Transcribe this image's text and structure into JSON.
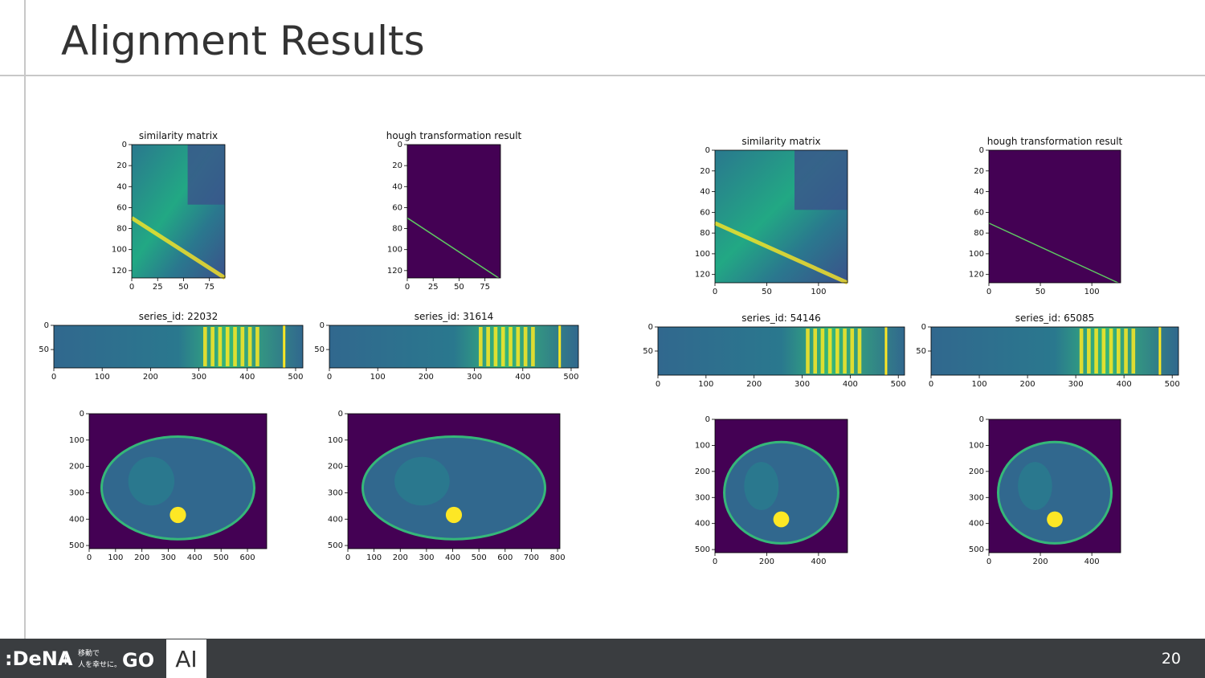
{
  "header": {
    "title": "Alignment Results"
  },
  "panels": [
    {
      "title": "similarity matrix",
      "xlim": [
        0,
        90
      ],
      "ylim": [
        127,
        0
      ],
      "xticks": [
        0,
        25,
        50,
        75
      ],
      "yticks": [
        0,
        20,
        40,
        60,
        80,
        100,
        120
      ]
    },
    {
      "title": "hough transformation result",
      "xlim": [
        0,
        90
      ],
      "ylim": [
        127,
        0
      ],
      "xticks": [
        0,
        25,
        50,
        75
      ],
      "yticks": [
        0,
        20,
        40,
        60,
        80,
        100,
        120
      ]
    },
    {
      "title": "series_id: 22032",
      "xlim": [
        0,
        515
      ],
      "ylim": [
        88,
        0
      ],
      "xticks": [
        0,
        100,
        200,
        300,
        400,
        500
      ],
      "yticks": [
        0,
        50
      ]
    },
    {
      "title": "series_id: 31614",
      "xlim": [
        0,
        515
      ],
      "ylim": [
        88,
        0
      ],
      "xticks": [
        0,
        100,
        200,
        300,
        400,
        500
      ],
      "yticks": [
        0,
        50
      ]
    },
    {
      "xlim": [
        0,
        673
      ],
      "ylim": [
        512,
        0
      ],
      "xticks": [
        0,
        100,
        200,
        300,
        400,
        500,
        600
      ],
      "yticks": [
        0,
        100,
        200,
        300,
        400,
        500
      ]
    },
    {
      "xlim": [
        0,
        809
      ],
      "ylim": [
        512,
        0
      ],
      "xticks": [
        0,
        100,
        200,
        300,
        400,
        500,
        600,
        700,
        800
      ],
      "yticks": [
        0,
        100,
        200,
        300,
        400,
        500
      ]
    },
    {
      "title": "similarity matrix",
      "xlim": [
        0,
        128
      ],
      "ylim": [
        128,
        0
      ],
      "xticks": [
        0,
        50,
        100
      ],
      "yticks": [
        0,
        20,
        40,
        60,
        80,
        100,
        120
      ]
    },
    {
      "title": "hough transformation result",
      "xlim": [
        0,
        128
      ],
      "ylim": [
        128,
        0
      ],
      "xticks": [
        0,
        50,
        100
      ],
      "yticks": [
        0,
        20,
        40,
        60,
        80,
        100,
        120
      ]
    },
    {
      "title": "series_id: 54146",
      "xlim": [
        0,
        513
      ],
      "ylim": [
        100,
        0
      ],
      "xticks": [
        0,
        100,
        200,
        300,
        400,
        500
      ],
      "yticks": [
        0,
        50
      ]
    },
    {
      "title": "series_id: 65085",
      "xlim": [
        0,
        513
      ],
      "ylim": [
        100,
        0
      ],
      "xticks": [
        0,
        100,
        200,
        300,
        400,
        500
      ],
      "yticks": [
        0,
        50
      ]
    },
    {
      "xlim": [
        0,
        512
      ],
      "ylim": [
        512,
        0
      ],
      "xticks": [
        0,
        200,
        400
      ],
      "yticks": [
        0,
        100,
        200,
        300,
        400,
        500
      ]
    },
    {
      "xlim": [
        0,
        512
      ],
      "ylim": [
        512,
        0
      ],
      "xticks": [
        0,
        200,
        400
      ],
      "yticks": [
        0,
        100,
        200,
        300,
        400,
        500
      ]
    }
  ],
  "footer": {
    "logo": ":DeNA",
    "plus": "+",
    "tagline_1": "移動で",
    "tagline_2": "人を幸せに。",
    "go": "GO",
    "ai": "AI",
    "page_number": "20"
  }
}
